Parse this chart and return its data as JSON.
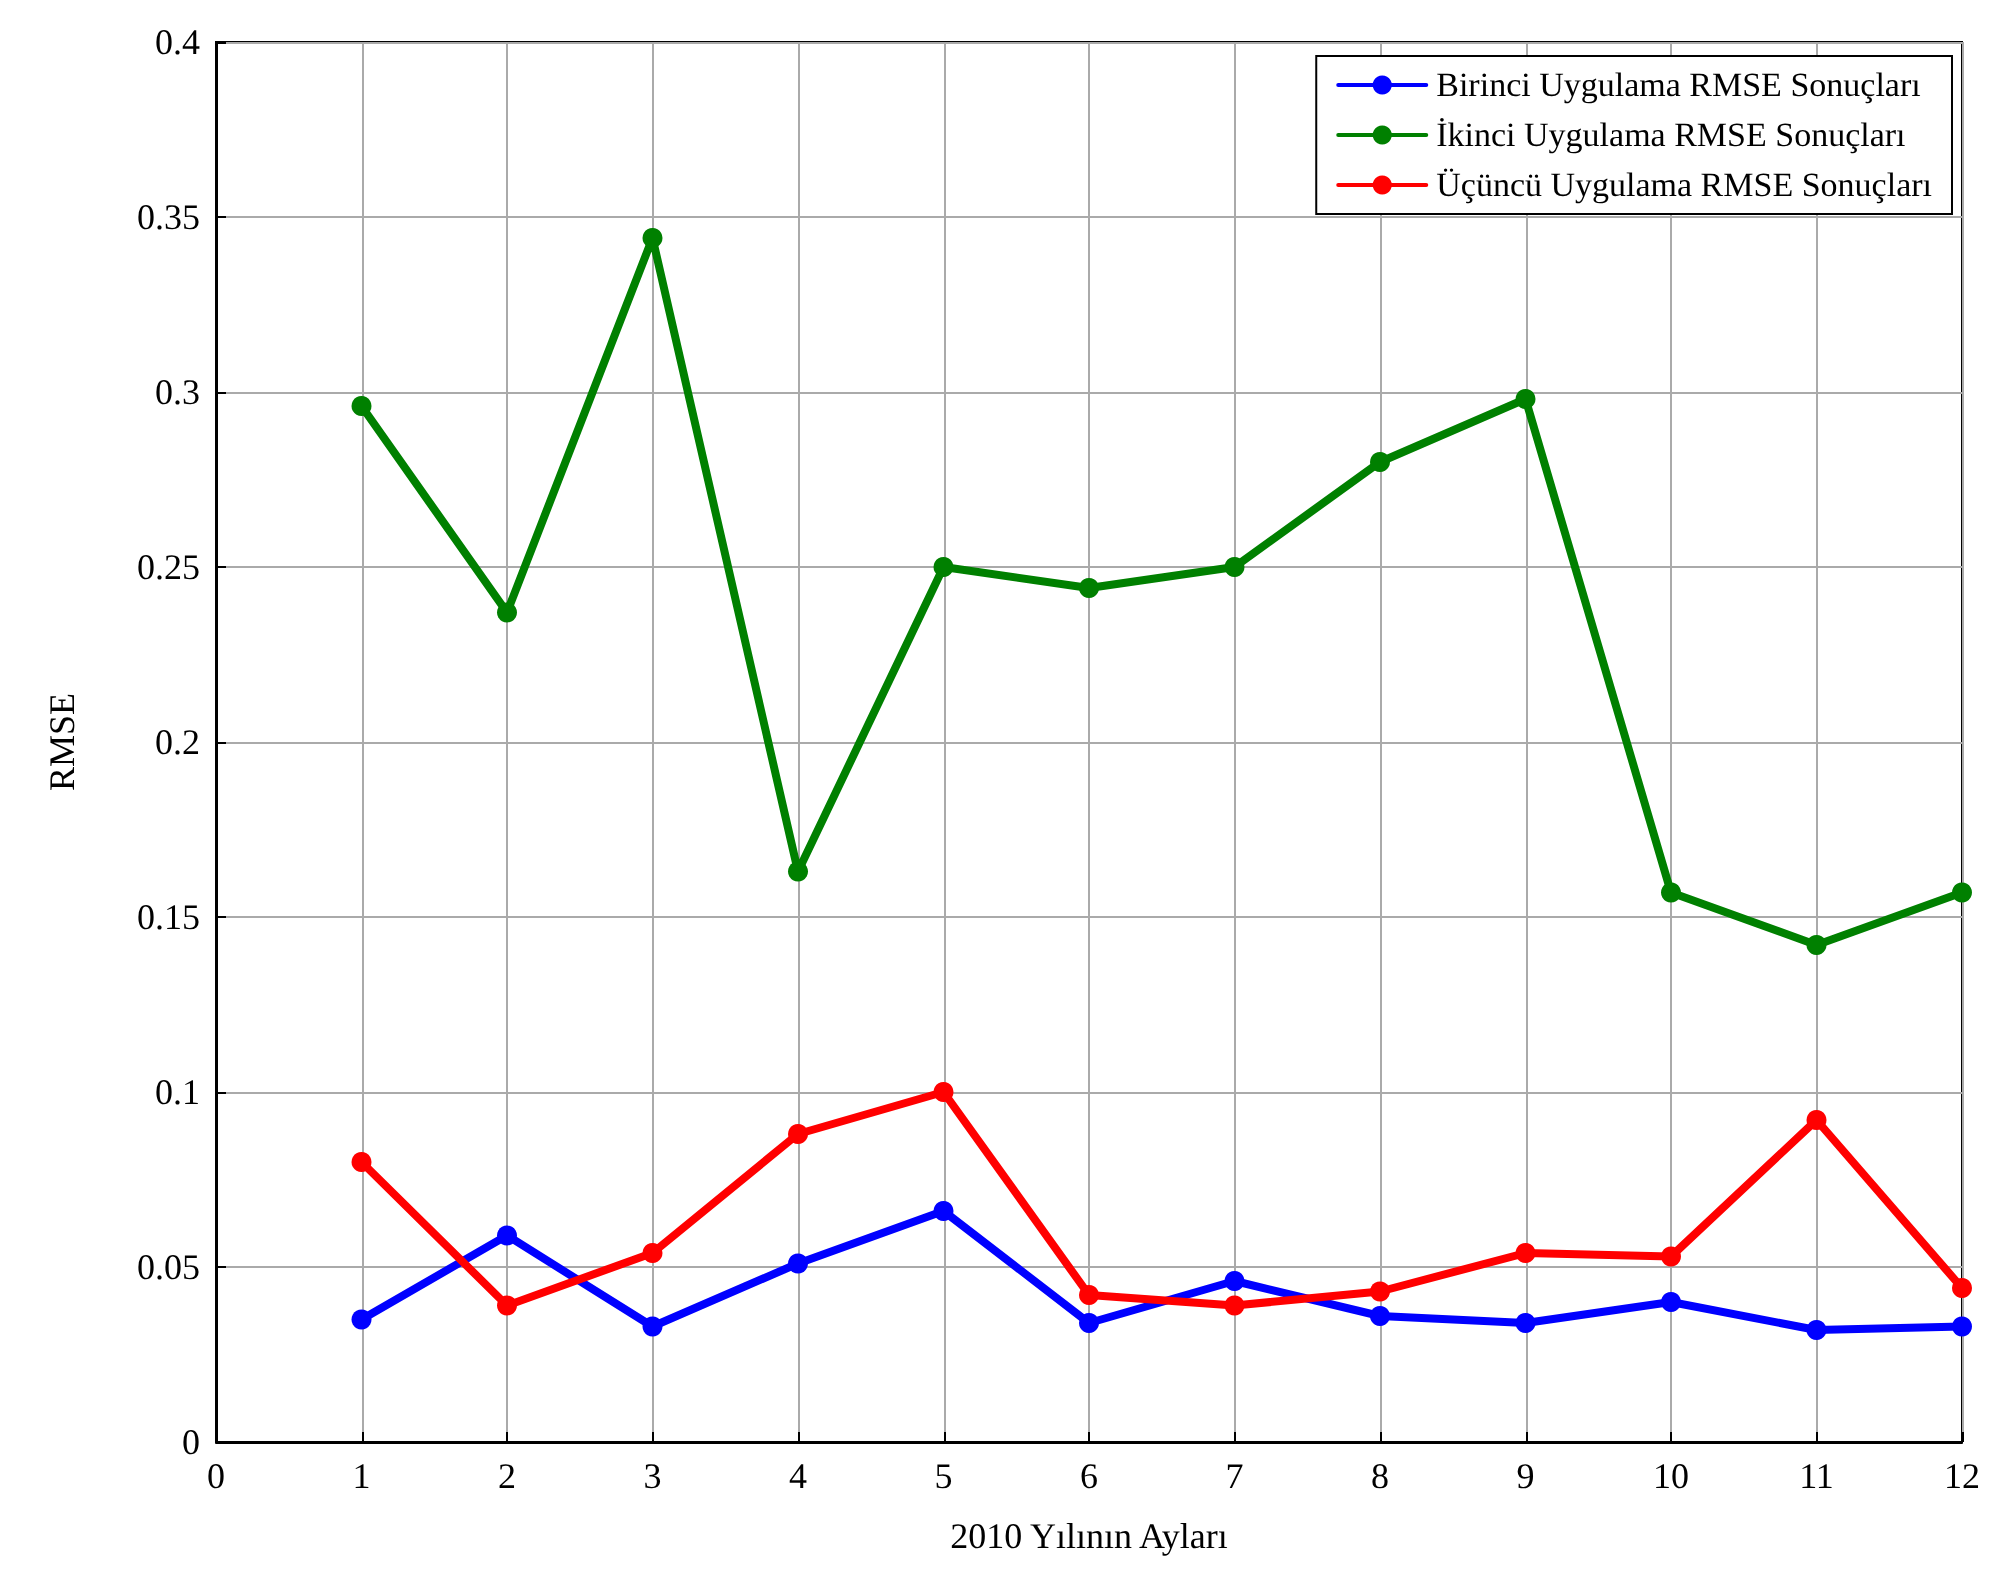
{
  "chart_data": {
    "type": "line",
    "xlabel": "2010 Yılının Ayları",
    "ylabel": "RMSE",
    "x": [
      1,
      2,
      3,
      4,
      5,
      6,
      7,
      8,
      9,
      10,
      11,
      12
    ],
    "series": [
      {
        "name": "Birinci Uygulama RMSE Sonuçları",
        "color": "#0000ff",
        "values": [
          0.035,
          0.059,
          0.033,
          0.051,
          0.066,
          0.034,
          0.046,
          0.036,
          0.034,
          0.04,
          0.032,
          0.033
        ]
      },
      {
        "name": "İkinci Uygulama RMSE Sonuçları",
        "color": "#008000",
        "values": [
          0.296,
          0.237,
          0.344,
          0.163,
          0.25,
          0.244,
          0.25,
          0.28,
          0.298,
          0.157,
          0.142,
          0.157
        ]
      },
      {
        "name": "Üçüncü Uygulama RMSE Sonuçları",
        "color": "#ff0000",
        "values": [
          0.08,
          0.039,
          0.054,
          0.088,
          0.1,
          0.042,
          0.039,
          0.043,
          0.054,
          0.053,
          0.092,
          0.044
        ]
      }
    ],
    "xlim": [
      0,
      12
    ],
    "xticks": [
      0,
      1,
      2,
      3,
      4,
      5,
      6,
      7,
      8,
      9,
      10,
      11,
      12
    ],
    "ylim": [
      0,
      0.4
    ],
    "yticks": [
      0,
      0.05,
      0.1,
      0.15,
      0.2,
      0.25,
      0.3,
      0.35,
      0.4
    ],
    "grid": true,
    "legend": "top right",
    "marker": "circle",
    "line_style": "solid"
  }
}
